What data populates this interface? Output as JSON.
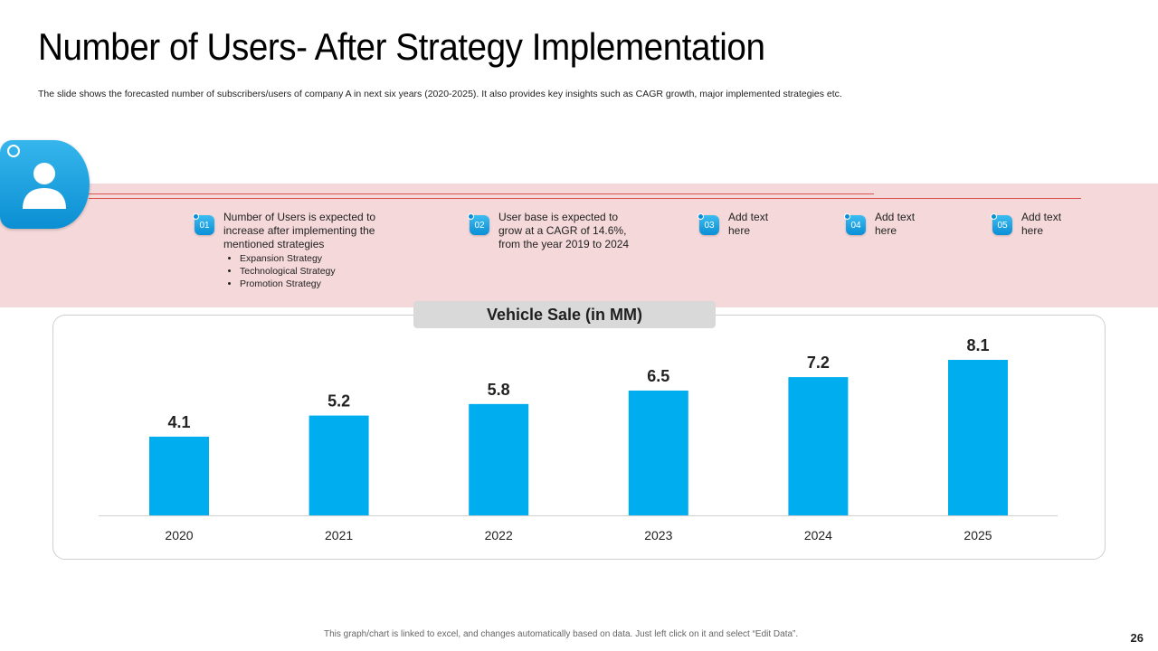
{
  "slide": {
    "title": "Number of Users- After Strategy Implementation",
    "subtitle": "The slide shows the forecasted number of subscribers/users of company A in next six years (2020-2025). It also provides key insights such as CAGR growth, major implemented strategies etc.",
    "footnote": "This graph/chart is linked to excel, and changes automatically  based on data. Just left click on it and select “Edit Data”.",
    "page_number": "26"
  },
  "insights": [
    {
      "badge": "01",
      "text": "Number of Users is expected to increase after implementing the mentioned strategies",
      "bullets": [
        "Expansion Strategy",
        "Technological Strategy",
        "Promotion Strategy"
      ]
    },
    {
      "badge": "02",
      "text": "User base is expected to grow at a CAGR of 14.6%, from the year 2019 to 2024"
    },
    {
      "badge": "03",
      "text": "Add text here"
    },
    {
      "badge": "04",
      "text": "Add text here"
    },
    {
      "badge": "05",
      "text": "Add text here"
    }
  ],
  "icons": {
    "avatar": "user-icon"
  },
  "colors": {
    "bar": "#00aeef",
    "band": "#f5d8d9",
    "accent_line": "#d9534f"
  },
  "chart_data": {
    "type": "bar",
    "title": "Vehicle Sale (in MM)",
    "categories": [
      "2020",
      "2021",
      "2022",
      "2023",
      "2024",
      "2025"
    ],
    "values": [
      4.1,
      5.2,
      5.8,
      6.5,
      7.2,
      8.1
    ],
    "data_labels": [
      "4.1",
      "5.2",
      "5.8",
      "6.5",
      "7.2",
      "8.1"
    ],
    "xlabel": "",
    "ylabel": "",
    "ylim": [
      0,
      8.1
    ],
    "grid": false,
    "legend": "none"
  }
}
